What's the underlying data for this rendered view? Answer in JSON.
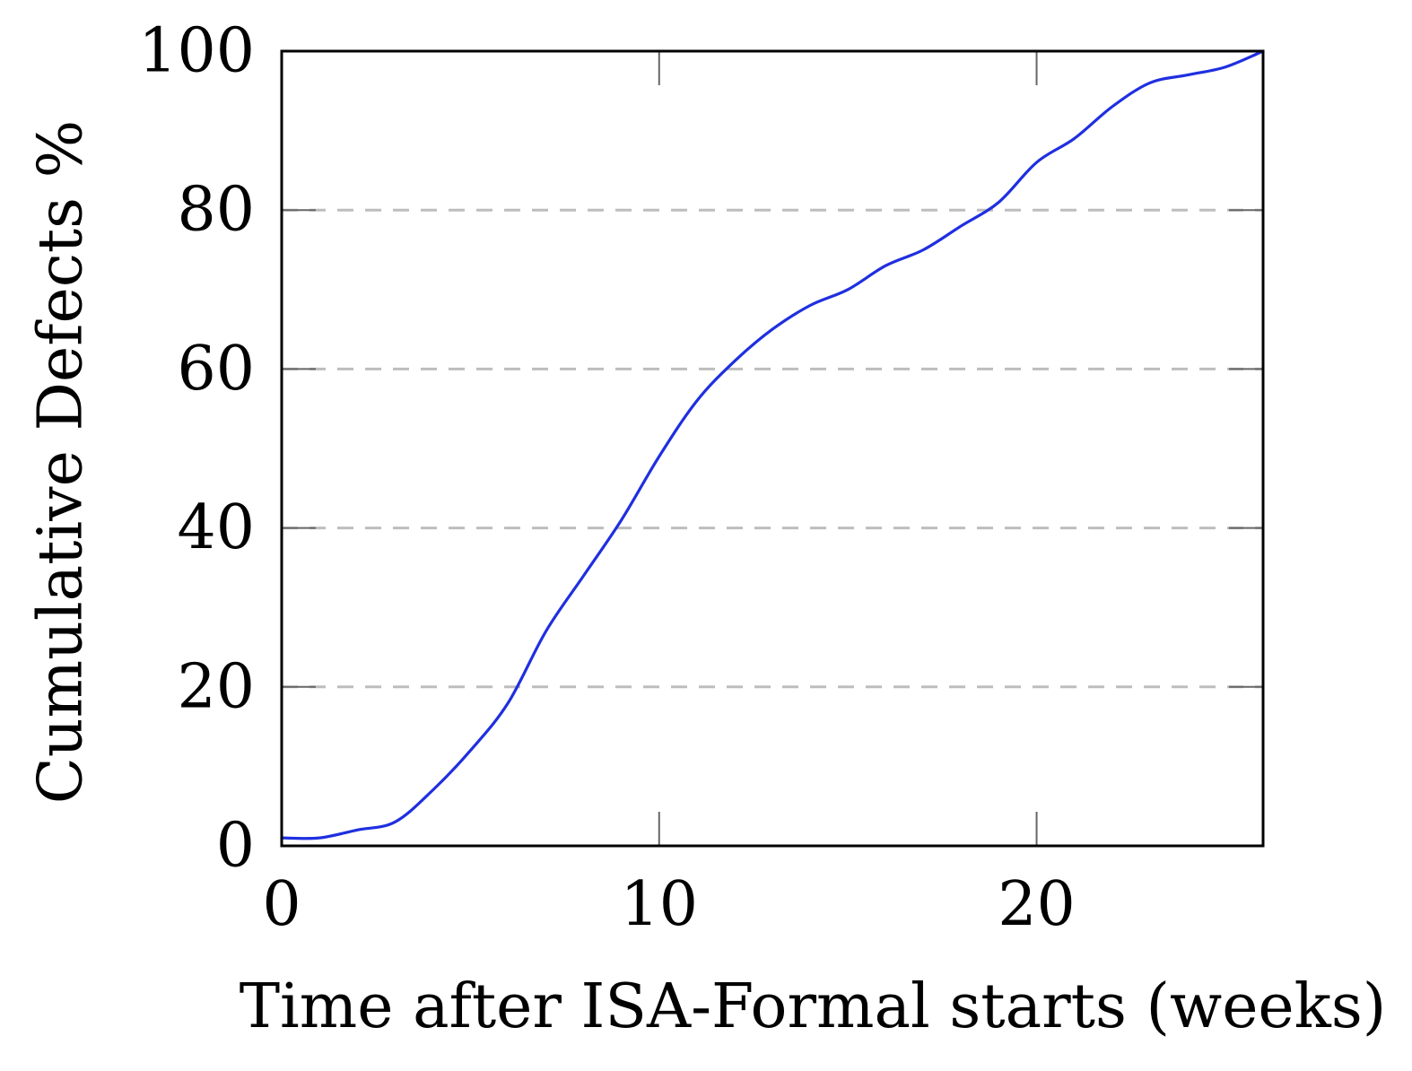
{
  "chart_data": {
    "type": "line",
    "title": "",
    "xlabel": "Time after ISA-Formal starts (weeks)",
    "ylabel": "Cumulative Defects %",
    "xlim": [
      0,
      26
    ],
    "ylim": [
      0,
      100
    ],
    "x_ticks": [
      0,
      10,
      20
    ],
    "x_tick_labels": [
      "0",
      "10",
      "20"
    ],
    "y_ticks": [
      0,
      20,
      40,
      60,
      80,
      100
    ],
    "y_tick_labels": [
      "0",
      "20",
      "40",
      "60",
      "80",
      "100"
    ],
    "grid": "horizontal dashed",
    "legend": "none",
    "series": [
      {
        "color": "#1f2fe0",
        "x": [
          0,
          1,
          2,
          3,
          4,
          5,
          6,
          7,
          8,
          9,
          10,
          11,
          12,
          13,
          14,
          15,
          16,
          17,
          18,
          19,
          20,
          21,
          22,
          23,
          24,
          25,
          26
        ],
        "y": [
          1,
          1,
          2,
          3,
          7,
          12,
          18,
          27,
          34,
          41,
          49,
          56,
          61,
          65,
          68,
          70,
          73,
          75,
          78,
          81,
          86,
          89,
          93,
          96,
          97,
          98,
          100
        ]
      }
    ]
  }
}
